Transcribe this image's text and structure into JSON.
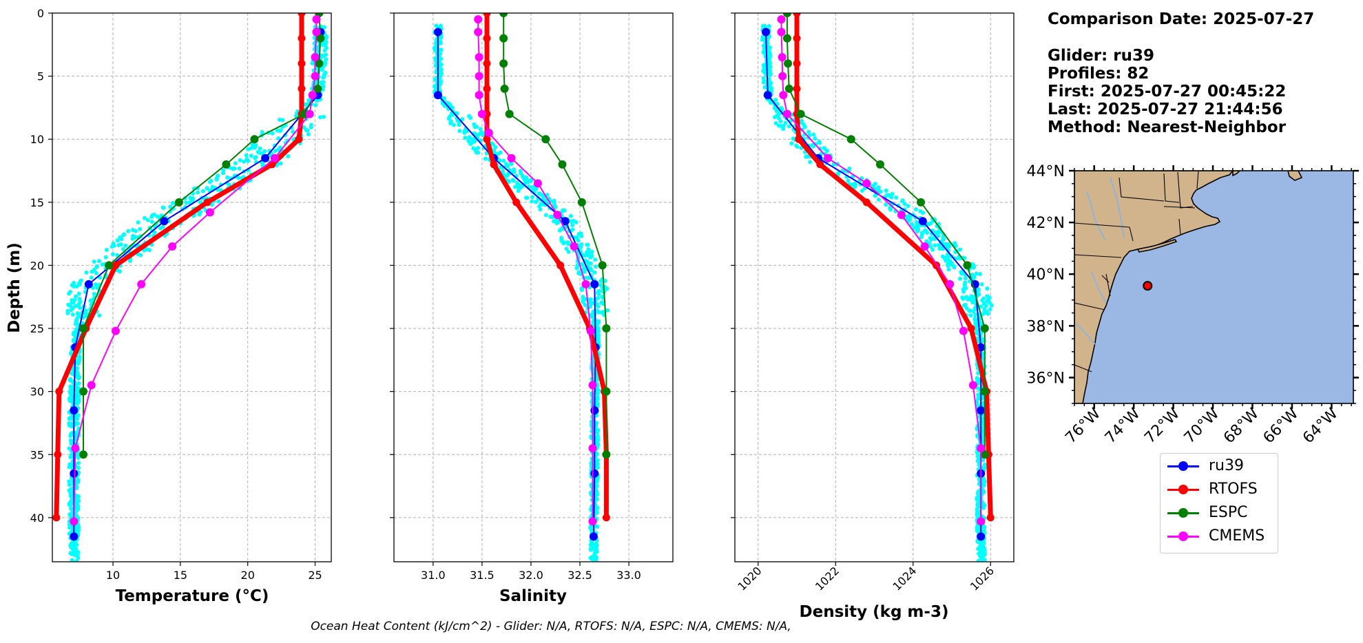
{
  "info": {
    "comparison": "Comparison Date: 2025-07-27",
    "glider": "Glider: ru39",
    "profiles": "Profiles: 82",
    "first": "First: 2025-07-27 00:45:22",
    "last": "Last: 2025-07-27 21:44:56",
    "method": "Method: Nearest-Neighbor"
  },
  "footer": "Ocean Heat Content (kJ/cm^2) - Glider: N/A,  RTOFS: N/A,  ESPC: N/A,  CMEMS: N/A,",
  "colors": {
    "glider": "#0000ff",
    "rtofs": "#ff0000",
    "espc": "#008000",
    "cmems": "#ff00ff",
    "obs": "#00ffff",
    "land": "#d2b48c",
    "ocean": "#9bb7e3"
  },
  "legend": [
    {
      "label": "ru39",
      "color": "#0000ff"
    },
    {
      "label": "RTOFS",
      "color": "#ff0000"
    },
    {
      "label": "ESPC",
      "color": "#008000"
    },
    {
      "label": "CMEMS",
      "color": "#ff00ff"
    }
  ],
  "chart_data": [
    {
      "type": "line",
      "xlabel": "Temperature (°C)",
      "ylabel": "Depth (m)",
      "xlim": [
        5.5,
        26.2
      ],
      "ylim": [
        43.5,
        0
      ],
      "xticks": [
        10,
        15,
        20,
        25
      ],
      "yticks": [
        0,
        5,
        10,
        15,
        20,
        25,
        30,
        35,
        40
      ],
      "grid": true,
      "series": [
        {
          "name": "ru39",
          "depth": [
            1.5,
            6.5,
            11.5,
            16.5,
            21.5,
            26.5,
            31.5,
            36.5,
            41.5
          ],
          "values": [
            25.4,
            25.2,
            21.3,
            13.8,
            8.2,
            7.2,
            7.1,
            7.1,
            7.1
          ]
        },
        {
          "name": "RTOFS",
          "depth": [
            0,
            2,
            4,
            6,
            8,
            10,
            12,
            15,
            20,
            25,
            30,
            35,
            40
          ],
          "values": [
            24.0,
            24.0,
            24.0,
            24.0,
            24.0,
            23.8,
            21.8,
            17.0,
            10.2,
            8.0,
            6.0,
            5.9,
            5.8
          ]
        },
        {
          "name": "ESPC",
          "depth": [
            0,
            2,
            4,
            6,
            8,
            10,
            12,
            15,
            20,
            25,
            30,
            35
          ],
          "values": [
            25.3,
            25.4,
            25.3,
            25.2,
            24.2,
            20.5,
            18.4,
            14.9,
            9.7,
            7.8,
            7.8,
            7.8
          ]
        },
        {
          "name": "CMEMS",
          "depth": [
            0.5,
            1.5,
            3.5,
            5,
            6.5,
            8,
            11.5,
            15.8,
            18.5,
            21.5,
            25.2,
            29.5,
            34.5,
            40.3
          ],
          "values": [
            25.1,
            25.1,
            25.0,
            25.0,
            24.8,
            24.6,
            22.0,
            17.2,
            14.4,
            12.1,
            10.2,
            8.4,
            7.2,
            7.1
          ]
        }
      ]
    },
    {
      "type": "line",
      "xlabel": "Salinity",
      "xlim": [
        30.6,
        33.45
      ],
      "ylim": [
        43.5,
        0
      ],
      "xticks": [
        31.0,
        31.5,
        32.0,
        32.5,
        33.0
      ],
      "grid": true,
      "series": [
        {
          "name": "ru39",
          "depth": [
            1.5,
            6.5,
            11.5,
            16.5,
            21.5,
            26.5,
            31.5,
            36.5,
            41.5
          ],
          "values": [
            31.05,
            31.05,
            31.62,
            32.35,
            32.65,
            32.66,
            32.65,
            32.65,
            32.64
          ]
        },
        {
          "name": "RTOFS",
          "depth": [
            0,
            2,
            4,
            6,
            8,
            10,
            12,
            15,
            20,
            25,
            30,
            35,
            40
          ],
          "values": [
            31.55,
            31.55,
            31.55,
            31.55,
            31.55,
            31.55,
            31.62,
            31.85,
            32.3,
            32.6,
            32.75,
            32.77,
            32.77
          ]
        },
        {
          "name": "ESPC",
          "depth": [
            0,
            2,
            4,
            6,
            8,
            10,
            12,
            15,
            20,
            25,
            30,
            35
          ],
          "values": [
            31.72,
            31.72,
            31.72,
            31.73,
            31.78,
            32.15,
            32.32,
            32.52,
            32.73,
            32.77,
            32.77,
            32.77
          ]
        },
        {
          "name": "CMEMS",
          "depth": [
            0.5,
            1.5,
            3.5,
            5,
            6.5,
            8,
            9.5,
            11.5,
            13.5,
            16,
            18.5,
            21.5,
            25.2,
            29.5,
            34.5,
            40.3
          ],
          "values": [
            31.46,
            31.46,
            31.47,
            31.47,
            31.47,
            31.5,
            31.57,
            31.8,
            32.07,
            32.27,
            32.44,
            32.56,
            32.61,
            32.63,
            32.63,
            32.63
          ]
        }
      ]
    },
    {
      "type": "line",
      "xlabel": "Density (kg m-3)",
      "xlim": [
        1019.4,
        1026.6
      ],
      "ylim": [
        43.5,
        0
      ],
      "xticks": [
        1020,
        1022,
        1024,
        1026
      ],
      "grid": true,
      "series": [
        {
          "name": "ru39",
          "depth": [
            1.5,
            6.5,
            11.5,
            16.5,
            21.5,
            26.5,
            31.5,
            36.5,
            41.5
          ],
          "values": [
            1020.2,
            1020.25,
            1021.55,
            1024.25,
            1025.6,
            1025.75,
            1025.75,
            1025.75,
            1025.75
          ]
        },
        {
          "name": "RTOFS",
          "depth": [
            0,
            2,
            4,
            6,
            8,
            10,
            12,
            15,
            20,
            25,
            30,
            35,
            40
          ],
          "values": [
            1021.0,
            1021.0,
            1021.0,
            1021.0,
            1021.0,
            1021.05,
            1021.6,
            1022.8,
            1024.6,
            1025.5,
            1025.9,
            1025.95,
            1026.0
          ]
        },
        {
          "name": "ESPC",
          "depth": [
            0,
            2,
            4,
            6,
            8,
            10,
            12,
            15,
            20,
            25,
            30,
            35
          ],
          "values": [
            1020.75,
            1020.75,
            1020.77,
            1020.8,
            1021.1,
            1022.4,
            1023.15,
            1024.2,
            1025.4,
            1025.85,
            1025.85,
            1025.85
          ]
        },
        {
          "name": "CMEMS",
          "depth": [
            0.5,
            1.5,
            3.5,
            5,
            6.5,
            8,
            11.5,
            13.5,
            16,
            18.5,
            21.5,
            25.2,
            29.5,
            34.5,
            40.3
          ],
          "values": [
            1020.6,
            1020.6,
            1020.62,
            1020.63,
            1020.65,
            1020.75,
            1021.8,
            1022.8,
            1023.7,
            1024.3,
            1024.95,
            1025.3,
            1025.55,
            1025.75,
            1025.75
          ]
        }
      ]
    },
    {
      "type": "map",
      "lon_ticks": [
        "76°W",
        "74°W",
        "72°W",
        "70°W",
        "68°W",
        "66°W",
        "64°W"
      ],
      "lat_ticks": [
        "44°N",
        "42°N",
        "40°N",
        "38°N",
        "36°N"
      ],
      "lon_range": [
        -77.0,
        -62.9
      ],
      "lat_range": [
        35.0,
        44.0
      ],
      "glider_position": {
        "lon": -73.3,
        "lat": 39.55
      }
    }
  ]
}
